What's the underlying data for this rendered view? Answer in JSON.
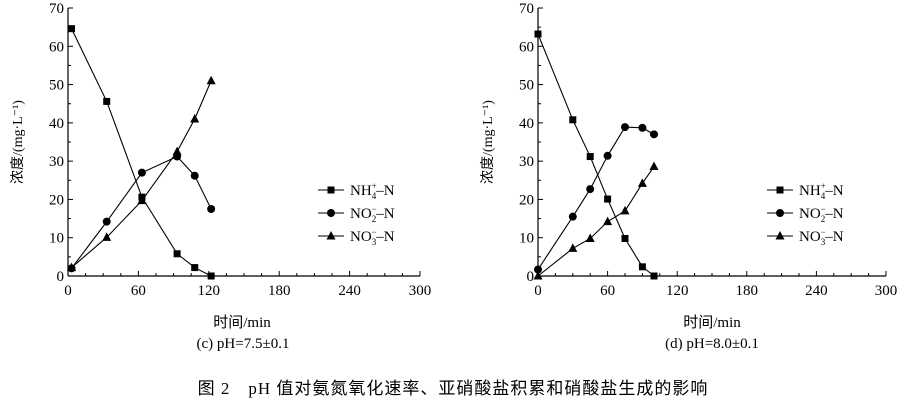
{
  "figure_caption": "图 2　pH 值对氨氮氧化速率、亚硝酸盐积累和硝酸盐生成的影响",
  "chart_data": [
    {
      "type": "line",
      "panel_label": "(c) pH=7.5±0.1",
      "xlabel": "时间/min",
      "ylabel": "浓度/(mg·L⁻¹)",
      "xlim": [
        0,
        300
      ],
      "ylim": [
        0,
        70
      ],
      "xticks": [
        0,
        60,
        120,
        180,
        240,
        300
      ],
      "yticks": [
        0,
        10,
        20,
        30,
        40,
        50,
        60,
        70
      ],
      "grid": false,
      "legend_placement": "center-right",
      "series": [
        {
          "name": "NH4+-N",
          "label_main": "NH",
          "label_sub": "4",
          "label_sup": "+",
          "label_tail": "–N",
          "marker": "square",
          "x": [
            3,
            33,
            63,
            93,
            108,
            122
          ],
          "y": [
            64.6,
            45.6,
            20.6,
            5.8,
            2.2,
            0
          ]
        },
        {
          "name": "NO2--N",
          "label_main": "NO",
          "label_sub": "2",
          "label_sup": "−",
          "label_tail": "–N",
          "marker": "circle",
          "x": [
            3,
            33,
            63,
            93,
            108,
            122
          ],
          "y": [
            2.0,
            14.2,
            27.0,
            31.2,
            26.2,
            17.5
          ]
        },
        {
          "name": "NO3--N",
          "label_main": "NO",
          "label_sub": "3",
          "label_sup": "−",
          "label_tail": "–N",
          "marker": "triangle",
          "x": [
            3,
            33,
            63,
            93,
            108,
            122
          ],
          "y": [
            2.2,
            10.1,
            19.7,
            32.5,
            41.0,
            51.0
          ]
        }
      ]
    },
    {
      "type": "line",
      "panel_label": "(d) pH=8.0±0.1",
      "xlabel": "时间/min",
      "ylabel": "浓度/(mg·L⁻¹)",
      "xlim": [
        0,
        300
      ],
      "ylim": [
        0,
        70
      ],
      "xticks": [
        0,
        60,
        120,
        180,
        240,
        300
      ],
      "yticks": [
        0,
        10,
        20,
        30,
        40,
        50,
        60,
        70
      ],
      "grid": false,
      "legend_placement": "center-right",
      "series": [
        {
          "name": "NH4+-N",
          "label_main": "NH",
          "label_sub": "4",
          "label_sup": "+",
          "label_tail": "–N",
          "marker": "square",
          "x": [
            0,
            30,
            45,
            60,
            75,
            90,
            100
          ],
          "y": [
            63.2,
            40.8,
            31.2,
            20.1,
            9.8,
            2.4,
            0
          ]
        },
        {
          "name": "NO2--N",
          "label_main": "NO",
          "label_sub": "2",
          "label_sup": "−",
          "label_tail": "–N",
          "marker": "circle",
          "x": [
            0,
            30,
            45,
            60,
            75,
            90,
            100
          ],
          "y": [
            1.7,
            15.5,
            22.7,
            31.4,
            38.9,
            38.7,
            37.0
          ]
        },
        {
          "name": "NO3--N",
          "label_main": "NO",
          "label_sub": "3",
          "label_sup": "−",
          "label_tail": "–N",
          "marker": "triangle",
          "x": [
            0,
            30,
            45,
            60,
            75,
            90,
            100
          ],
          "y": [
            0,
            7.2,
            9.8,
            14.2,
            17.0,
            24.2,
            28.6
          ]
        }
      ]
    }
  ]
}
